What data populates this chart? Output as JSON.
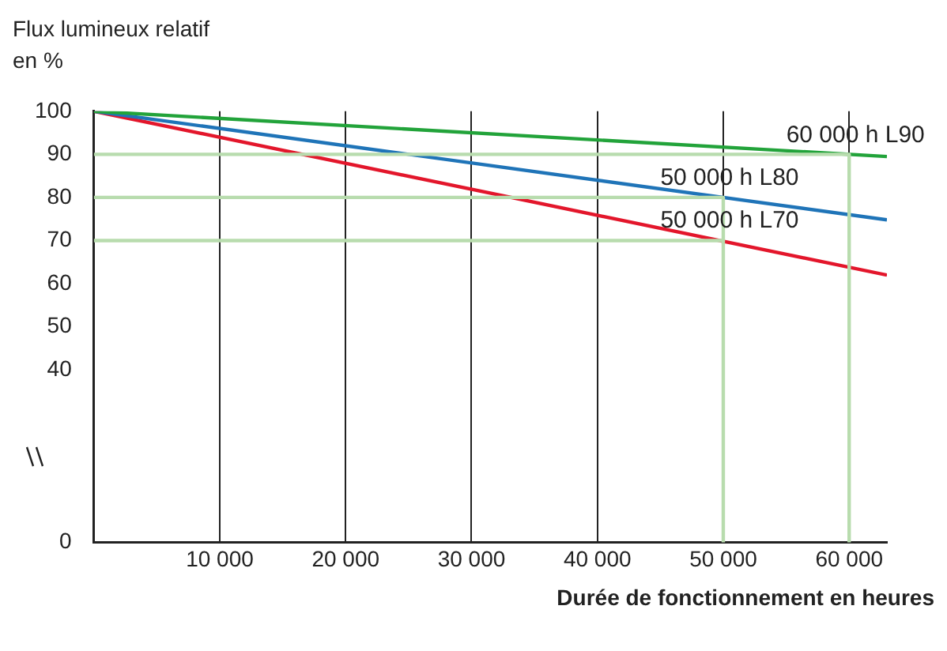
{
  "chart_data": {
    "type": "line",
    "ylabel": "Flux lumineux relatif en %",
    "xlabel": "Durée de fonctionnement en heures",
    "xlim": [
      0,
      63000
    ],
    "ylim": [
      0,
      100
    ],
    "xticks": [
      {
        "value": 10000,
        "label": "10 000"
      },
      {
        "value": 20000,
        "label": "20 000"
      },
      {
        "value": 30000,
        "label": "30 000"
      },
      {
        "value": 40000,
        "label": "40 000"
      },
      {
        "value": 50000,
        "label": "50 000"
      },
      {
        "value": 60000,
        "label": "60 000"
      }
    ],
    "yticks": [
      0,
      40,
      50,
      60,
      70,
      80,
      90,
      100
    ],
    "grid": "x",
    "marker": "none",
    "line_style": "solid",
    "legend": false,
    "series": [
      {
        "name": "60 000 h L90",
        "color": "#b8dcae",
        "x": [
          0,
          60000,
          60000
        ],
        "values": [
          90,
          90,
          0
        ]
      },
      {
        "name": "50 000 h L80",
        "color": "#b8dcae",
        "x": [
          0,
          50000,
          50000
        ],
        "values": [
          80,
          80,
          0
        ]
      },
      {
        "name": "50 000 h L70",
        "color": "#b8dcae",
        "x": [
          0,
          50000
        ],
        "values": [
          70,
          70
        ]
      },
      {
        "color": "#22a33a",
        "x": [
          0,
          63000
        ],
        "values": [
          100,
          89.5
        ]
      },
      {
        "color": "#1f74b8",
        "x": [
          0,
          63000
        ],
        "values": [
          100,
          74.8
        ]
      },
      {
        "color": "#e3162b",
        "x": [
          0,
          63000
        ],
        "values": [
          100,
          62
        ]
      }
    ]
  }
}
